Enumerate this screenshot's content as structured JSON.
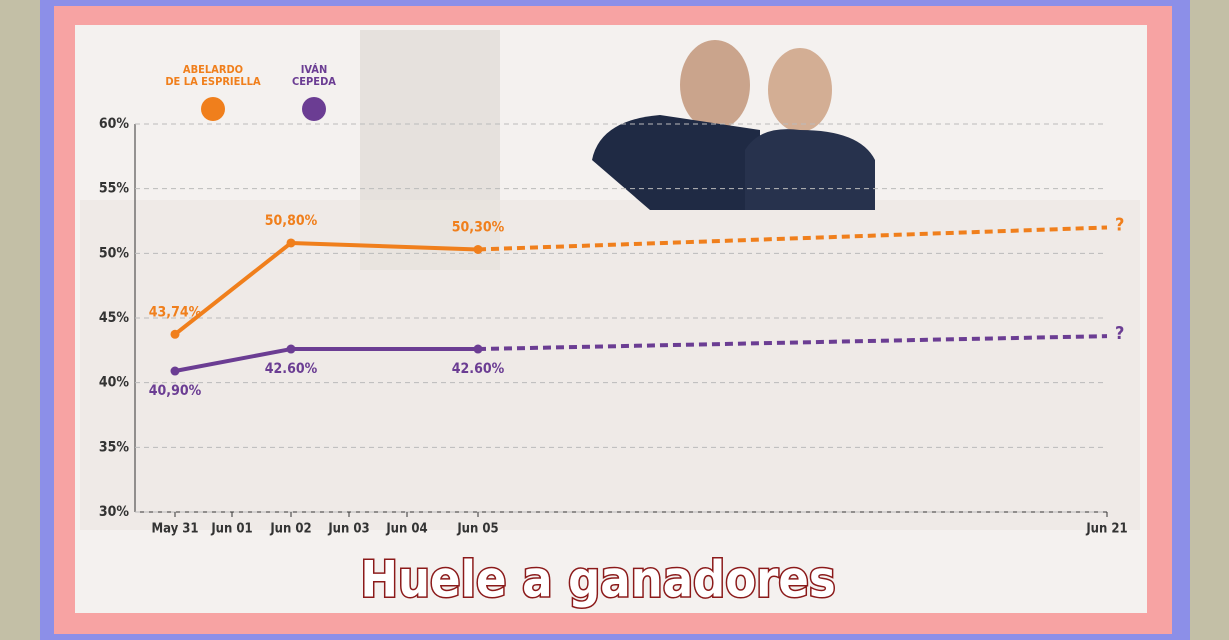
{
  "chart_data": {
    "type": "line",
    "title": "Huele a ganadores",
    "categories": [
      "May 31",
      "Jun 01",
      "Jun 02",
      "Jun 03",
      "Jun 04",
      "Jun 05",
      "Jun 21"
    ],
    "series": [
      {
        "name": "ABELARDO\nDE LA ESPRIELLA",
        "color": "#f07f1c",
        "values": [
          43.74,
          null,
          50.8,
          null,
          null,
          50.3,
          52.0
        ],
        "value_labels": [
          "43,74%",
          null,
          "50,80%",
          null,
          null,
          "50,30%",
          "?"
        ]
      },
      {
        "name": "IVÁN\nCEPEDA",
        "color": "#6b3d93",
        "values": [
          40.9,
          null,
          42.6,
          null,
          null,
          42.6,
          43.6
        ],
        "value_labels": [
          "40,90%",
          null,
          "42.60%",
          null,
          null,
          "42.60%",
          "?"
        ]
      }
    ],
    "ylim": [
      30,
      60
    ],
    "yticks": [
      {
        "value": 30,
        "label": "30%"
      },
      {
        "value": 35,
        "label": "35%"
      },
      {
        "value": 40,
        "label": "40%"
      },
      {
        "value": 45,
        "label": "45%"
      },
      {
        "value": 50,
        "label": "50%"
      },
      {
        "value": 55,
        "label": "55%"
      },
      {
        "value": 60,
        "label": "60%"
      }
    ],
    "grid": true
  }
}
